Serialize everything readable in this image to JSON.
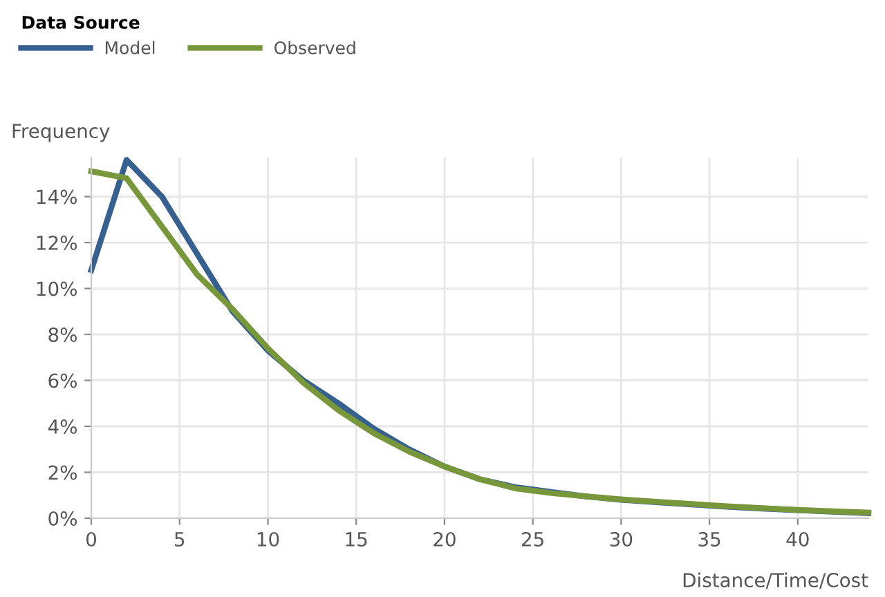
{
  "chart_data": {
    "type": "line",
    "xlabel": "Distance/Time/Cost",
    "ylabel": "Frequency",
    "legend_title": "Data Source",
    "legend": "top left",
    "grid": true,
    "x": [
      0,
      2,
      4,
      6,
      8,
      10,
      12,
      14,
      16,
      18,
      20,
      22,
      24,
      26,
      28,
      30,
      32,
      34,
      36,
      38,
      40,
      42,
      44
    ],
    "series": [
      {
        "name": "Model",
        "color": "#35608f",
        "values": [
          10.8,
          15.6,
          14.0,
          11.5,
          9.0,
          7.3,
          6.0,
          5.0,
          3.9,
          3.0,
          2.25,
          1.7,
          1.35,
          1.15,
          0.95,
          0.8,
          0.7,
          0.6,
          0.5,
          0.42,
          0.35,
          0.28,
          0.22
        ]
      },
      {
        "name": "Observed",
        "color": "#78963a",
        "values": [
          15.1,
          14.8,
          12.7,
          10.6,
          9.1,
          7.4,
          5.9,
          4.7,
          3.7,
          2.9,
          2.25,
          1.7,
          1.3,
          1.1,
          0.95,
          0.82,
          0.72,
          0.62,
          0.52,
          0.44,
          0.36,
          0.3,
          0.25
        ]
      }
    ],
    "xlim": [
      0,
      44
    ],
    "ylim": [
      0,
      15.7
    ],
    "xticks": [
      0,
      5,
      10,
      15,
      20,
      25,
      30,
      35,
      40
    ],
    "yticks": [
      {
        "value": 0,
        "label": "0%"
      },
      {
        "value": 2,
        "label": "2%"
      },
      {
        "value": 4,
        "label": "4%"
      },
      {
        "value": 6,
        "label": "6%"
      },
      {
        "value": 8,
        "label": "8%"
      },
      {
        "value": 10,
        "label": "10%"
      },
      {
        "value": 12,
        "label": "12%"
      },
      {
        "value": 14,
        "label": "14%"
      }
    ]
  }
}
